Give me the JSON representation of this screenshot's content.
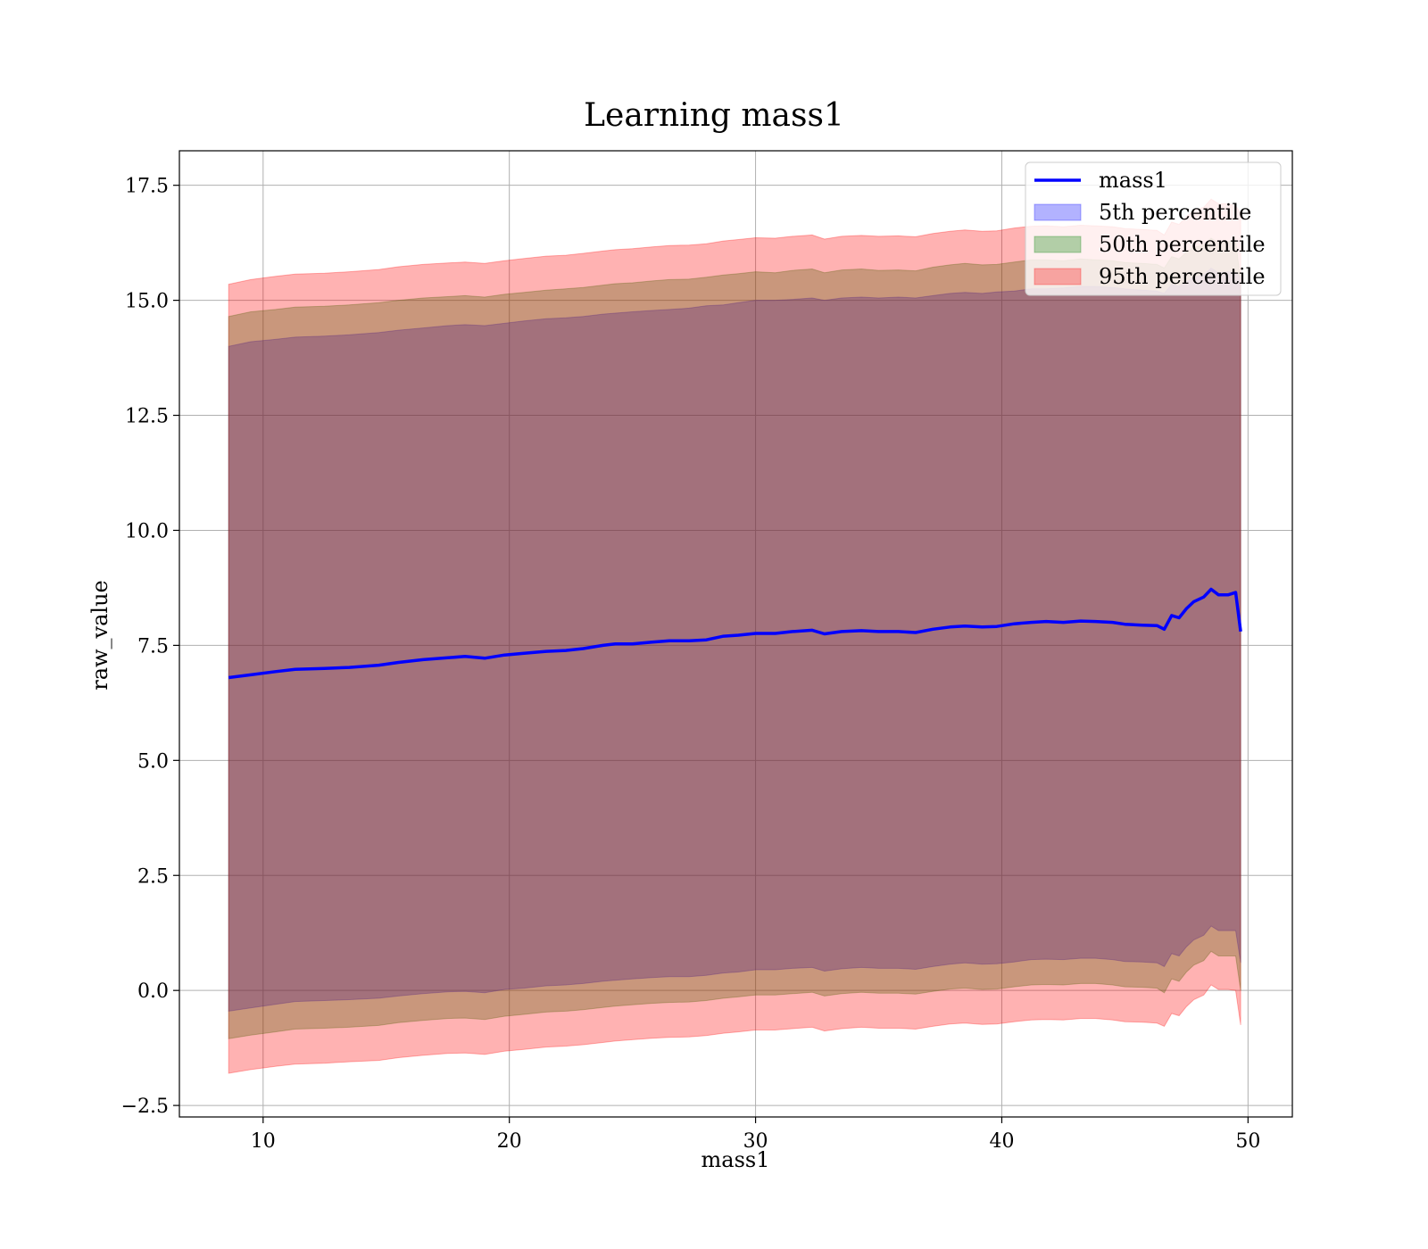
{
  "chart_data": {
    "type": "area",
    "title": "Learning mass1",
    "xlabel": "mass1",
    "ylabel": "raw_value",
    "xlim": [
      6.6,
      51.8
    ],
    "ylim": [
      -2.75,
      18.25
    ],
    "xticks": [
      10,
      20,
      30,
      40,
      50
    ],
    "xtick_labels": [
      "10",
      "20",
      "30",
      "40",
      "50"
    ],
    "yticks": [
      -2.5,
      0.0,
      2.5,
      5.0,
      7.5,
      10.0,
      12.5,
      15.0,
      17.5
    ],
    "ytick_labels": [
      "−2.5",
      "0.0",
      "2.5",
      "5.0",
      "7.5",
      "10.0",
      "12.5",
      "15.0",
      "17.5"
    ],
    "grid": true,
    "legend_position": "top-right",
    "x": [
      8.6,
      9.5,
      10.5,
      11.3,
      12.5,
      13.5,
      14.7,
      15.5,
      16.5,
      17.5,
      18.2,
      19.0,
      19.8,
      20.6,
      21.5,
      22.3,
      23.0,
      23.8,
      24.3,
      25.0,
      25.8,
      26.5,
      27.3,
      28.0,
      28.7,
      29.3,
      30.0,
      30.8,
      31.5,
      32.3,
      32.8,
      33.5,
      34.3,
      35.0,
      35.8,
      36.5,
      37.2,
      37.9,
      38.5,
      39.2,
      39.8,
      40.5,
      41.2,
      41.8,
      42.5,
      43.2,
      43.8,
      44.5,
      45.0,
      45.7,
      46.3,
      46.6,
      46.9,
      47.2,
      47.5,
      47.8,
      48.2,
      48.5,
      48.8,
      49.2,
      49.5,
      49.7
    ],
    "series": [
      {
        "name": "mass1",
        "kind": "line",
        "color": "#0000ff",
        "values": [
          6.8,
          6.86,
          6.93,
          6.98,
          7.0,
          7.02,
          7.07,
          7.13,
          7.19,
          7.23,
          7.26,
          7.22,
          7.29,
          7.33,
          7.37,
          7.39,
          7.43,
          7.5,
          7.53,
          7.53,
          7.57,
          7.6,
          7.6,
          7.62,
          7.7,
          7.72,
          7.76,
          7.76,
          7.8,
          7.83,
          7.75,
          7.8,
          7.82,
          7.8,
          7.8,
          7.78,
          7.85,
          7.9,
          7.92,
          7.9,
          7.91,
          7.97,
          8.0,
          8.02,
          8.0,
          8.03,
          8.02,
          8.0,
          7.96,
          7.94,
          7.93,
          7.85,
          8.15,
          8.1,
          8.3,
          8.45,
          8.55,
          8.72,
          8.6,
          8.6,
          8.65,
          7.8
        ]
      },
      {
        "name": "5th percentile",
        "kind": "band",
        "color": "#0000ff",
        "upper": [
          14.0,
          14.1,
          14.15,
          14.2,
          14.22,
          14.25,
          14.3,
          14.35,
          14.4,
          14.45,
          14.47,
          14.45,
          14.5,
          14.55,
          14.6,
          14.62,
          14.65,
          14.7,
          14.72,
          14.75,
          14.78,
          14.8,
          14.83,
          14.88,
          14.9,
          14.95,
          15.0,
          15.0,
          15.02,
          15.05,
          15.0,
          15.05,
          15.07,
          15.05,
          15.07,
          15.05,
          15.1,
          15.15,
          15.17,
          15.15,
          15.18,
          15.2,
          15.25,
          15.25,
          15.27,
          15.3,
          15.3,
          15.28,
          15.25,
          15.22,
          15.2,
          15.15,
          15.35,
          15.3,
          15.4,
          15.5,
          15.55,
          15.7,
          15.6,
          15.62,
          15.6,
          15.5
        ],
        "lower": [
          -0.45,
          -0.38,
          -0.3,
          -0.24,
          -0.22,
          -0.2,
          -0.17,
          -0.12,
          -0.07,
          -0.03,
          -0.02,
          -0.05,
          0.02,
          0.05,
          0.1,
          0.12,
          0.15,
          0.2,
          0.22,
          0.25,
          0.28,
          0.3,
          0.3,
          0.33,
          0.38,
          0.4,
          0.45,
          0.45,
          0.48,
          0.5,
          0.42,
          0.47,
          0.5,
          0.48,
          0.48,
          0.46,
          0.52,
          0.57,
          0.6,
          0.57,
          0.58,
          0.62,
          0.67,
          0.68,
          0.67,
          0.7,
          0.7,
          0.67,
          0.63,
          0.62,
          0.6,
          0.52,
          0.8,
          0.75,
          0.95,
          1.1,
          1.2,
          1.4,
          1.3,
          1.3,
          1.3,
          0.6
        ]
      },
      {
        "name": "50th percentile",
        "kind": "band",
        "color": "#008000",
        "upper": [
          14.65,
          14.75,
          14.8,
          14.85,
          14.87,
          14.9,
          14.95,
          15.0,
          15.05,
          15.08,
          15.1,
          15.07,
          15.13,
          15.17,
          15.22,
          15.25,
          15.28,
          15.33,
          15.36,
          15.38,
          15.42,
          15.45,
          15.46,
          15.5,
          15.55,
          15.58,
          15.62,
          15.6,
          15.65,
          15.68,
          15.6,
          15.66,
          15.68,
          15.65,
          15.66,
          15.64,
          15.72,
          15.77,
          15.8,
          15.77,
          15.78,
          15.83,
          15.88,
          15.88,
          15.86,
          15.9,
          15.88,
          15.86,
          15.82,
          15.8,
          15.78,
          15.7,
          15.95,
          15.9,
          16.05,
          16.15,
          16.2,
          16.35,
          16.25,
          16.28,
          16.3,
          15.4
        ],
        "lower": [
          -1.05,
          -0.97,
          -0.9,
          -0.84,
          -0.82,
          -0.8,
          -0.76,
          -0.7,
          -0.65,
          -0.61,
          -0.6,
          -0.63,
          -0.56,
          -0.52,
          -0.47,
          -0.45,
          -0.42,
          -0.37,
          -0.34,
          -0.31,
          -0.28,
          -0.26,
          -0.25,
          -0.22,
          -0.17,
          -0.14,
          -0.1,
          -0.1,
          -0.07,
          -0.04,
          -0.12,
          -0.07,
          -0.04,
          -0.06,
          -0.06,
          -0.08,
          -0.02,
          0.03,
          0.05,
          0.02,
          0.03,
          0.08,
          0.12,
          0.13,
          0.12,
          0.15,
          0.15,
          0.12,
          0.08,
          0.07,
          0.05,
          -0.05,
          0.25,
          0.2,
          0.4,
          0.55,
          0.65,
          0.85,
          0.75,
          0.75,
          0.75,
          0.0
        ]
      },
      {
        "name": "95th percentile",
        "kind": "band",
        "color": "#ff0000",
        "upper": [
          15.35,
          15.45,
          15.52,
          15.57,
          15.59,
          15.62,
          15.67,
          15.73,
          15.78,
          15.81,
          15.83,
          15.8,
          15.86,
          15.91,
          15.96,
          15.98,
          16.02,
          16.07,
          16.1,
          16.12,
          16.16,
          16.19,
          16.2,
          16.23,
          16.29,
          16.32,
          16.36,
          16.35,
          16.39,
          16.42,
          16.33,
          16.39,
          16.41,
          16.39,
          16.4,
          16.38,
          16.45,
          16.5,
          16.53,
          16.5,
          16.51,
          16.57,
          16.61,
          16.62,
          16.6,
          16.63,
          16.62,
          16.6,
          16.56,
          16.54,
          16.52,
          16.42,
          16.7,
          16.65,
          16.82,
          16.95,
          17.02,
          17.2,
          17.1,
          17.1,
          17.05,
          16.9
        ],
        "lower": [
          -1.8,
          -1.72,
          -1.65,
          -1.6,
          -1.58,
          -1.55,
          -1.52,
          -1.46,
          -1.41,
          -1.37,
          -1.36,
          -1.39,
          -1.32,
          -1.28,
          -1.23,
          -1.21,
          -1.18,
          -1.13,
          -1.1,
          -1.07,
          -1.04,
          -1.02,
          -1.01,
          -0.98,
          -0.93,
          -0.9,
          -0.86,
          -0.86,
          -0.83,
          -0.8,
          -0.88,
          -0.83,
          -0.8,
          -0.82,
          -0.82,
          -0.84,
          -0.78,
          -0.73,
          -0.71,
          -0.74,
          -0.73,
          -0.68,
          -0.64,
          -0.63,
          -0.64,
          -0.61,
          -0.61,
          -0.64,
          -0.68,
          -0.69,
          -0.71,
          -0.78,
          -0.5,
          -0.55,
          -0.35,
          -0.2,
          -0.1,
          0.12,
          0.02,
          0.02,
          0.0,
          -0.75
        ]
      }
    ]
  }
}
